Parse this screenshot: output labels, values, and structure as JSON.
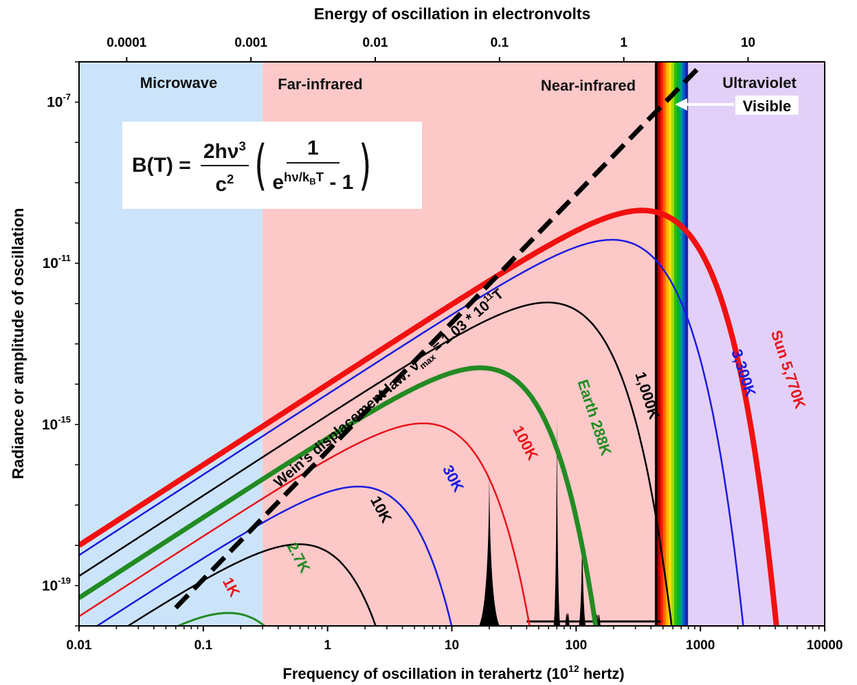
{
  "chart_data": {
    "type": "line",
    "xlabel": "Frequency of oscillation in terahertz (10",
    "xlabel_sup": "12",
    "xlabel_tail": " hertz)",
    "top_axis_label": "Energy of oscillation in electronvolts",
    "ylabel": "Radiance or amplitude of oscillation",
    "x_scale": "log",
    "xlim": [
      0.01,
      10000
    ],
    "ylim_log10": [
      -20,
      -6
    ],
    "x_ticks": [
      "0.01",
      "0.1",
      "1",
      "10",
      "100",
      "1000",
      "10000"
    ],
    "x_tick_values": [
      0.01,
      0.1,
      1,
      10,
      100,
      1000,
      10000
    ],
    "top_ticks": [
      "0.0001",
      "0.001",
      "0.01",
      "0.1",
      "1",
      "10"
    ],
    "top_tick_values_ev": [
      0.0001,
      0.001,
      0.01,
      0.1,
      1,
      10
    ],
    "y_ticks": [
      {
        "base": "10",
        "exp": "-7",
        "log": -7
      },
      {
        "base": "10",
        "exp": "-11",
        "log": -11
      },
      {
        "base": "10",
        "exp": "-15",
        "log": -15
      },
      {
        "base": "10",
        "exp": "-19",
        "log": -19
      }
    ],
    "regions": [
      {
        "label": "Microwave",
        "from": 0.01,
        "to": 0.3,
        "color": "#cce4fa"
      },
      {
        "label": "Far-infrared",
        "from": 0.3,
        "to": 430,
        "color": "#fcc8c8"
      },
      {
        "label": "Near-infrared",
        "from": 0.3,
        "to": 430,
        "color": "#fcc8c8"
      },
      {
        "label": "Ultraviolet",
        "from": 800,
        "to": 10000,
        "color": "#e2d0f8"
      }
    ],
    "visible_label": "Visible",
    "visible_band": [
      430,
      790
    ],
    "series": [
      {
        "name": "1K",
        "temp": 1,
        "color": "#e8141c",
        "width": 2.5
      },
      {
        "name": "2.7K",
        "temp": 2.7,
        "color": "#228b22",
        "width": 3
      },
      {
        "name": "10K",
        "temp": 10,
        "color": "#000000",
        "width": 2.5
      },
      {
        "name": "30K",
        "temp": 30,
        "color": "#1a1adf",
        "width": 2.5
      },
      {
        "name": "100K",
        "temp": 100,
        "color": "#e8141c",
        "width": 2.5
      },
      {
        "name": "Earth 288K",
        "temp": 288,
        "color": "#228b22",
        "width": 7
      },
      {
        "name": "1,000K",
        "temp": 1000,
        "color": "#000000",
        "width": 2.5
      },
      {
        "name": "3,300K",
        "temp": 3300,
        "color": "#1a1adf",
        "width": 2.5
      },
      {
        "name": "Sun 5,770K",
        "temp": 5770,
        "color": "#f21010",
        "width": 8
      }
    ],
    "wien_label": "Wein's displacement law:  ν",
    "wien_sub": "max",
    "wien_mid": " = 1.03 * 10",
    "wien_sup": "11",
    "wien_end": "T",
    "formula": {
      "lhs": "B(T) = ",
      "num1": "2hν",
      "num1_sup": "3",
      "den1": "c",
      "den1_sup": "2",
      "num2": "1",
      "den2_base": "e",
      "den2_exp": "hν/k",
      "den2_exp_sub": "B",
      "den2_exp_tail": "T",
      "den2_tail": " - 1"
    }
  }
}
